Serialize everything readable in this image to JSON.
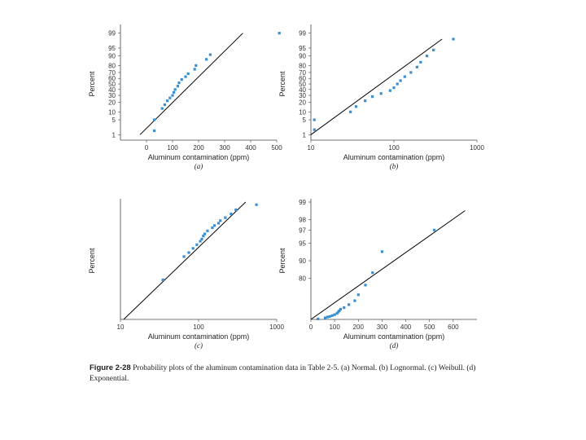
{
  "colors": {
    "point": "#3a8fd0",
    "fit_line": "#000000",
    "axis": "#444444"
  },
  "caption": {
    "label": "Figure 2-28",
    "text": "Probability plots of the aluminum contamination data in Table 2-5. (a) Normal. (b) Lognormal. (c) Weibull. (d) Exponential."
  },
  "chart_data": [
    {
      "type": "scatter",
      "subplot_label": "(a)",
      "xlabel": "Aluminum contamination (ppm)",
      "ylabel": "Percent",
      "x_scale": "linear",
      "xlim": [
        -100,
        500
      ],
      "x_ticks": [
        0,
        100,
        200,
        300,
        400,
        500
      ],
      "y_ticks": [
        1,
        5,
        10,
        20,
        30,
        40,
        50,
        60,
        70,
        80,
        90,
        95,
        99
      ],
      "points": [
        [
          30,
          1.6
        ],
        [
          30,
          5
        ],
        [
          60,
          13
        ],
        [
          70,
          17
        ],
        [
          80,
          22
        ],
        [
          90,
          26
        ],
        [
          100,
          30
        ],
        [
          105,
          35
        ],
        [
          110,
          40
        ],
        [
          120,
          46
        ],
        [
          125,
          52
        ],
        [
          135,
          58
        ],
        [
          150,
          63
        ],
        [
          160,
          68
        ],
        [
          185,
          75
        ],
        [
          190,
          80
        ],
        [
          230,
          87
        ],
        [
          245,
          91
        ],
        [
          510,
          99
        ]
      ],
      "fit_line": [
        [
          -25,
          1
        ],
        [
          370,
          99
        ]
      ]
    },
    {
      "type": "scatter",
      "subplot_label": "(b)",
      "xlabel": "Aluminum contamination (ppm)",
      "ylabel": "Percent",
      "x_scale": "log",
      "xlim": [
        10,
        1000
      ],
      "x_ticks": [
        10,
        100,
        1000
      ],
      "y_ticks": [
        1,
        5,
        10,
        20,
        30,
        40,
        50,
        60,
        70,
        80,
        90,
        95,
        99
      ],
      "points": [
        [
          11,
          5
        ],
        [
          11,
          1.8
        ],
        [
          30,
          10
        ],
        [
          35,
          15
        ],
        [
          45,
          22
        ],
        [
          55,
          28
        ],
        [
          70,
          33
        ],
        [
          90,
          38
        ],
        [
          100,
          43
        ],
        [
          110,
          50
        ],
        [
          120,
          56
        ],
        [
          135,
          63
        ],
        [
          160,
          70
        ],
        [
          190,
          78
        ],
        [
          210,
          84
        ],
        [
          250,
          90
        ],
        [
          300,
          94
        ],
        [
          520,
          98
        ]
      ],
      "fit_line": [
        [
          10,
          1
        ],
        [
          380,
          98
        ]
      ]
    },
    {
      "type": "scatter",
      "subplot_label": "(c)",
      "xlabel": "Aluminum contamination (ppm)",
      "ylabel": "Percent",
      "x_scale": "log",
      "xlim": [
        10,
        1000
      ],
      "x_ticks": [
        10,
        100,
        1000
      ],
      "points": [
        [
          35,
          8
        ],
        [
          65,
          25
        ],
        [
          75,
          30
        ],
        [
          85,
          36
        ],
        [
          95,
          42
        ],
        [
          105,
          48
        ],
        [
          110,
          52
        ],
        [
          115,
          58
        ],
        [
          120,
          62
        ],
        [
          130,
          68
        ],
        [
          150,
          74
        ],
        [
          160,
          78
        ],
        [
          180,
          82
        ],
        [
          190,
          86
        ],
        [
          220,
          90
        ],
        [
          260,
          94
        ],
        [
          300,
          97
        ],
        [
          550,
          99
        ]
      ],
      "fit_line": [
        [
          11,
          1
        ],
        [
          400,
          99.5
        ]
      ]
    },
    {
      "type": "scatter",
      "subplot_label": "(d)",
      "xlabel": "Aluminum contamination (ppm)",
      "ylabel": "Percent",
      "x_scale": "linear",
      "xlim": [
        0,
        700
      ],
      "x_ticks": [
        0,
        100,
        200,
        300,
        400,
        500,
        600
      ],
      "y_ticks": [
        99,
        98,
        97,
        95,
        90,
        80
      ],
      "points": [
        [
          30,
          2
        ],
        [
          60,
          6
        ],
        [
          70,
          9
        ],
        [
          80,
          11
        ],
        [
          90,
          14
        ],
        [
          100,
          17
        ],
        [
          110,
          21
        ],
        [
          115,
          25
        ],
        [
          120,
          29
        ],
        [
          125,
          33
        ],
        [
          140,
          37
        ],
        [
          160,
          44
        ],
        [
          185,
          52
        ],
        [
          200,
          62
        ],
        [
          230,
          74
        ],
        [
          260,
          84
        ],
        [
          300,
          93
        ],
        [
          520,
          97
        ]
      ],
      "fit_line": [
        [
          0,
          0
        ],
        [
          650,
          98.6
        ]
      ]
    }
  ]
}
